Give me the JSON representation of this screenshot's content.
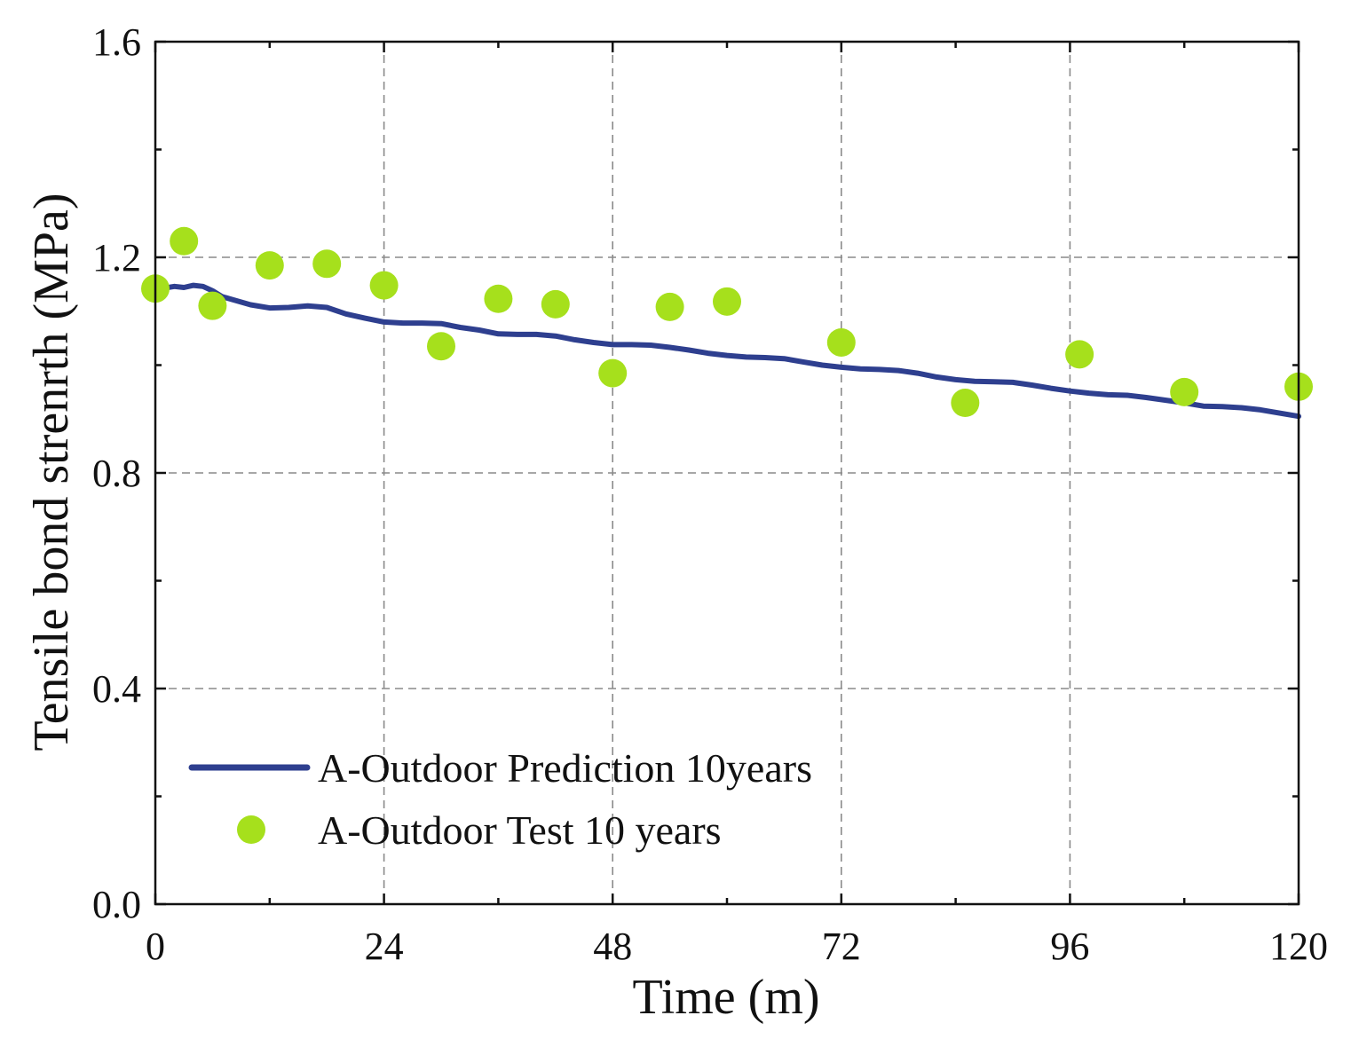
{
  "chart_data": {
    "type": "scatter",
    "title": "",
    "xlabel": "Time (m)",
    "ylabel": "Tensile bond strenrth (MPa)",
    "xlim": [
      0,
      120
    ],
    "ylim": [
      0.0,
      1.6
    ],
    "xticks": [
      0,
      24,
      48,
      72,
      96,
      120
    ],
    "xtick_labels": [
      "0",
      "24",
      "48",
      "72",
      "96",
      "120"
    ],
    "yticks": [
      0.0,
      0.4,
      0.8,
      1.2,
      1.6
    ],
    "ytick_labels": [
      "0.0",
      "0.4",
      "0.8",
      "1.2",
      "1.6"
    ],
    "grid": true,
    "legend_position": "bottom-left",
    "series": [
      {
        "name": "A-Outdoor Prediction 10years",
        "kind": "line",
        "color": "#2e3f8f",
        "x": [
          0,
          1,
          2,
          3,
          4,
          5,
          6,
          7,
          8,
          10,
          12,
          14,
          16,
          18,
          20,
          22,
          24,
          26,
          28,
          30,
          32,
          34,
          36,
          38,
          40,
          42,
          44,
          46,
          48,
          50,
          52,
          54,
          56,
          58,
          60,
          62,
          64,
          66,
          68,
          70,
          72,
          74,
          76,
          78,
          80,
          82,
          84,
          86,
          88,
          90,
          92,
          94,
          96,
          98,
          100,
          102,
          104,
          106,
          108,
          110,
          112,
          114,
          116,
          118,
          120
        ],
        "y": [
          1.143,
          1.143,
          1.146,
          1.144,
          1.148,
          1.146,
          1.138,
          1.127,
          1.122,
          1.112,
          1.106,
          1.107,
          1.11,
          1.107,
          1.095,
          1.087,
          1.08,
          1.078,
          1.078,
          1.077,
          1.07,
          1.065,
          1.058,
          1.057,
          1.057,
          1.054,
          1.047,
          1.042,
          1.038,
          1.038,
          1.037,
          1.033,
          1.028,
          1.022,
          1.018,
          1.015,
          1.014,
          1.012,
          1.006,
          1.0,
          0.996,
          0.993,
          0.992,
          0.99,
          0.985,
          0.978,
          0.973,
          0.97,
          0.969,
          0.968,
          0.963,
          0.957,
          0.952,
          0.948,
          0.945,
          0.944,
          0.94,
          0.935,
          0.93,
          0.924,
          0.923,
          0.921,
          0.917,
          0.911,
          0.905
        ]
      },
      {
        "name": "A-Outdoor Test 10 years",
        "kind": "scatter",
        "color": "#a6e01c",
        "x": [
          0,
          3,
          6,
          12,
          18,
          24,
          30,
          36,
          42,
          48,
          54,
          60,
          72,
          85,
          97,
          108,
          120
        ],
        "y": [
          1.142,
          1.23,
          1.11,
          1.185,
          1.188,
          1.148,
          1.035,
          1.123,
          1.113,
          0.985,
          1.108,
          1.118,
          1.042,
          0.93,
          1.02,
          0.95,
          0.96
        ]
      }
    ]
  }
}
